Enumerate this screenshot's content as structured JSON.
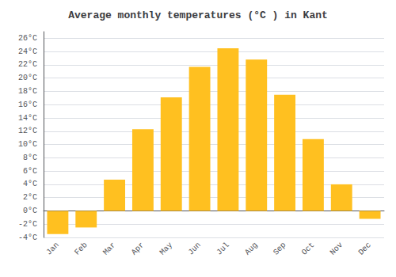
{
  "chart_data": {
    "type": "bar",
    "title": "Average monthly temperatures (°C ) in Kant",
    "categories": [
      "Jan",
      "Feb",
      "Mar",
      "Apr",
      "May",
      "Jun",
      "Jul",
      "Aug",
      "Sep",
      "Oct",
      "Nov",
      "Dec"
    ],
    "values": [
      -3.5,
      -2.5,
      4.7,
      12.3,
      17.1,
      21.7,
      24.5,
      22.8,
      17.5,
      10.8,
      4.0,
      -1.2
    ],
    "color": "#FFC020",
    "ylim": [
      -4,
      27
    ],
    "yticks": [
      {
        "value": -4,
        "label": "-4°C"
      },
      {
        "value": -2,
        "label": "-2°C"
      },
      {
        "value": 0,
        "label": "0°C"
      },
      {
        "value": 2,
        "label": "2°C"
      },
      {
        "value": 4,
        "label": "4°C"
      },
      {
        "value": 6,
        "label": "6°C"
      },
      {
        "value": 8,
        "label": "8°C"
      },
      {
        "value": 10,
        "label": "10°C"
      },
      {
        "value": 12,
        "label": "12°C"
      },
      {
        "value": 14,
        "label": "14°C"
      },
      {
        "value": 16,
        "label": "16°C"
      },
      {
        "value": 18,
        "label": "18°C"
      },
      {
        "value": 20,
        "label": "20°C"
      },
      {
        "value": 22,
        "label": "22°C"
      },
      {
        "value": 24,
        "label": "24°C"
      },
      {
        "value": 26,
        "label": "26°C"
      }
    ],
    "grid": true
  }
}
